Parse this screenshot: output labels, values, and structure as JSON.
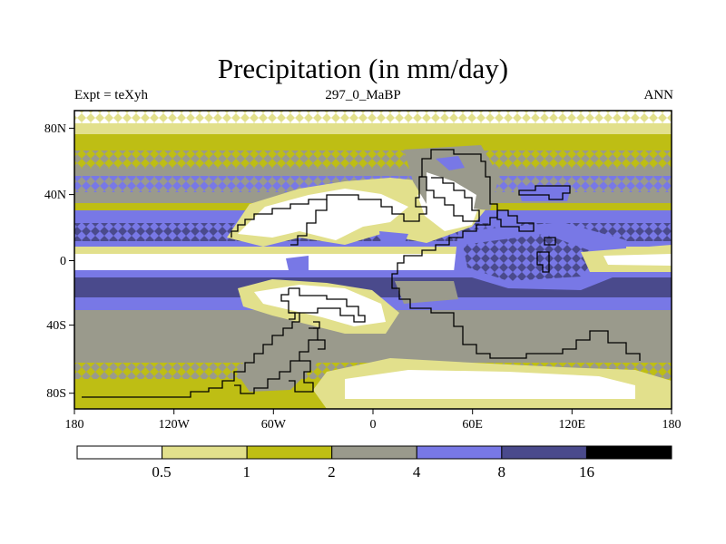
{
  "plot": {
    "title": "Precipitation (in mm/day)",
    "left_string": "Expt = teXyh",
    "center_string": "297_0_MaBP",
    "right_string": "ANN"
  },
  "axes": {
    "x_ticks": [
      "180",
      "120W",
      "60W",
      "0",
      "60E",
      "120E",
      "180"
    ],
    "y_ticks": [
      "80N",
      "40N",
      "0",
      "40S",
      "80S"
    ]
  },
  "colorbar": {
    "levels": [
      "0.5",
      "1",
      "2",
      "4",
      "8",
      "16"
    ],
    "colors": [
      "#ffffff",
      "#e2e08c",
      "#bebe14",
      "#9a9a8c",
      "#7878e6",
      "#4a4a8c",
      "#000000"
    ]
  },
  "colors": {
    "coastline": "#000000",
    "frame": "#000000"
  }
}
